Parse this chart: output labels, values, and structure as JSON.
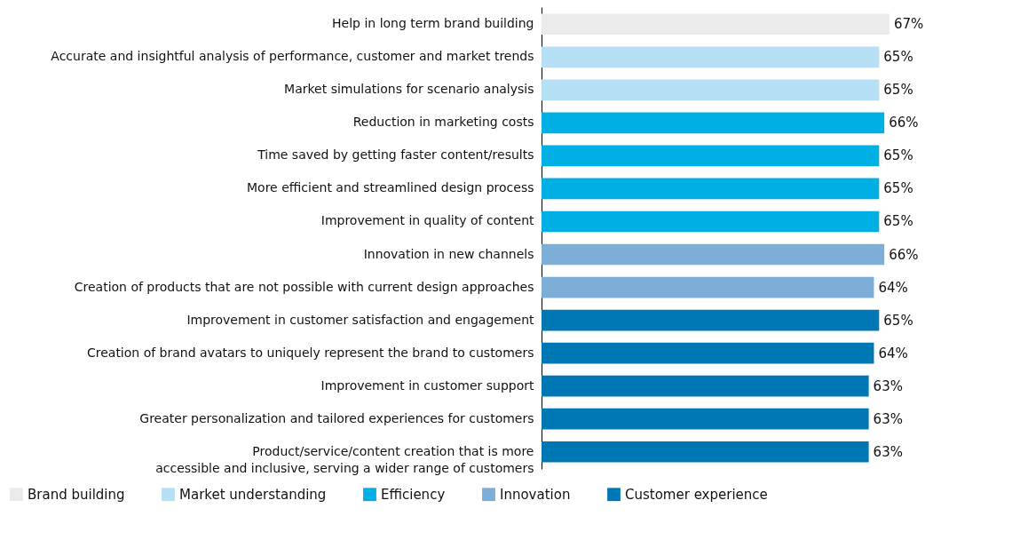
{
  "chart_data": {
    "type": "bar",
    "orientation": "horizontal",
    "legend": "bottom",
    "categories": [
      "Help in long term brand building",
      "Accurate and insightful analysis of performance, customer and market trends",
      "Market simulations for scenario analysis",
      "Reduction in marketing costs",
      "Time saved by getting faster content/results",
      "More efficient and streamlined design process",
      "Improvement in quality of content",
      "Innovation in new channels",
      "Creation of products that are not possible with current design approaches",
      "Improvement in customer satisfaction and engagement",
      "Creation of brand avatars to uniquely represent the brand to customers",
      "Improvement in customer support",
      "Greater personalization and tailored experiences for customers",
      "Product/service/content creation that is more\naccessible and inclusive, serving a wider range of customers"
    ],
    "series": [
      {
        "name": "Brand building",
        "color": "#ebebeb",
        "values": [
          67,
          null,
          null,
          null,
          null,
          null,
          null,
          null,
          null,
          null,
          null,
          null,
          null,
          null
        ],
        "value_labels": [
          "67%",
          null,
          null,
          null,
          null,
          null,
          null,
          null,
          null,
          null,
          null,
          null,
          null,
          null
        ]
      },
      {
        "name": "Market understanding",
        "color": "#b5e0f6",
        "values": [
          null,
          65,
          65,
          null,
          null,
          null,
          null,
          null,
          null,
          null,
          null,
          null,
          null,
          null
        ],
        "value_labels": [
          null,
          "65%",
          "65%",
          null,
          null,
          null,
          null,
          null,
          null,
          null,
          null,
          null,
          null,
          null
        ]
      },
      {
        "name": "Efficiency",
        "color": "#00b0e4",
        "values": [
          null,
          null,
          null,
          66,
          65,
          65,
          65,
          null,
          null,
          null,
          null,
          null,
          null,
          null
        ],
        "value_labels": [
          null,
          null,
          null,
          "66%",
          "65%",
          "65%",
          "65%",
          null,
          null,
          null,
          null,
          null,
          null,
          null
        ]
      },
      {
        "name": "Innovation",
        "color": "#7caed7",
        "values": [
          null,
          null,
          null,
          null,
          null,
          null,
          null,
          66,
          64,
          null,
          null,
          null,
          null,
          null
        ],
        "value_labels": [
          null,
          null,
          null,
          null,
          null,
          null,
          null,
          "66%",
          "64%",
          null,
          null,
          null,
          null,
          null
        ]
      },
      {
        "name": "Customer experience",
        "color": "#0077b5",
        "values": [
          null,
          null,
          null,
          null,
          null,
          null,
          null,
          null,
          null,
          65,
          64,
          63,
          63,
          63
        ],
        "value_labels": [
          null,
          null,
          null,
          null,
          null,
          null,
          null,
          null,
          null,
          "65%",
          "64%",
          "63%",
          "63%",
          "63%"
        ]
      }
    ]
  }
}
